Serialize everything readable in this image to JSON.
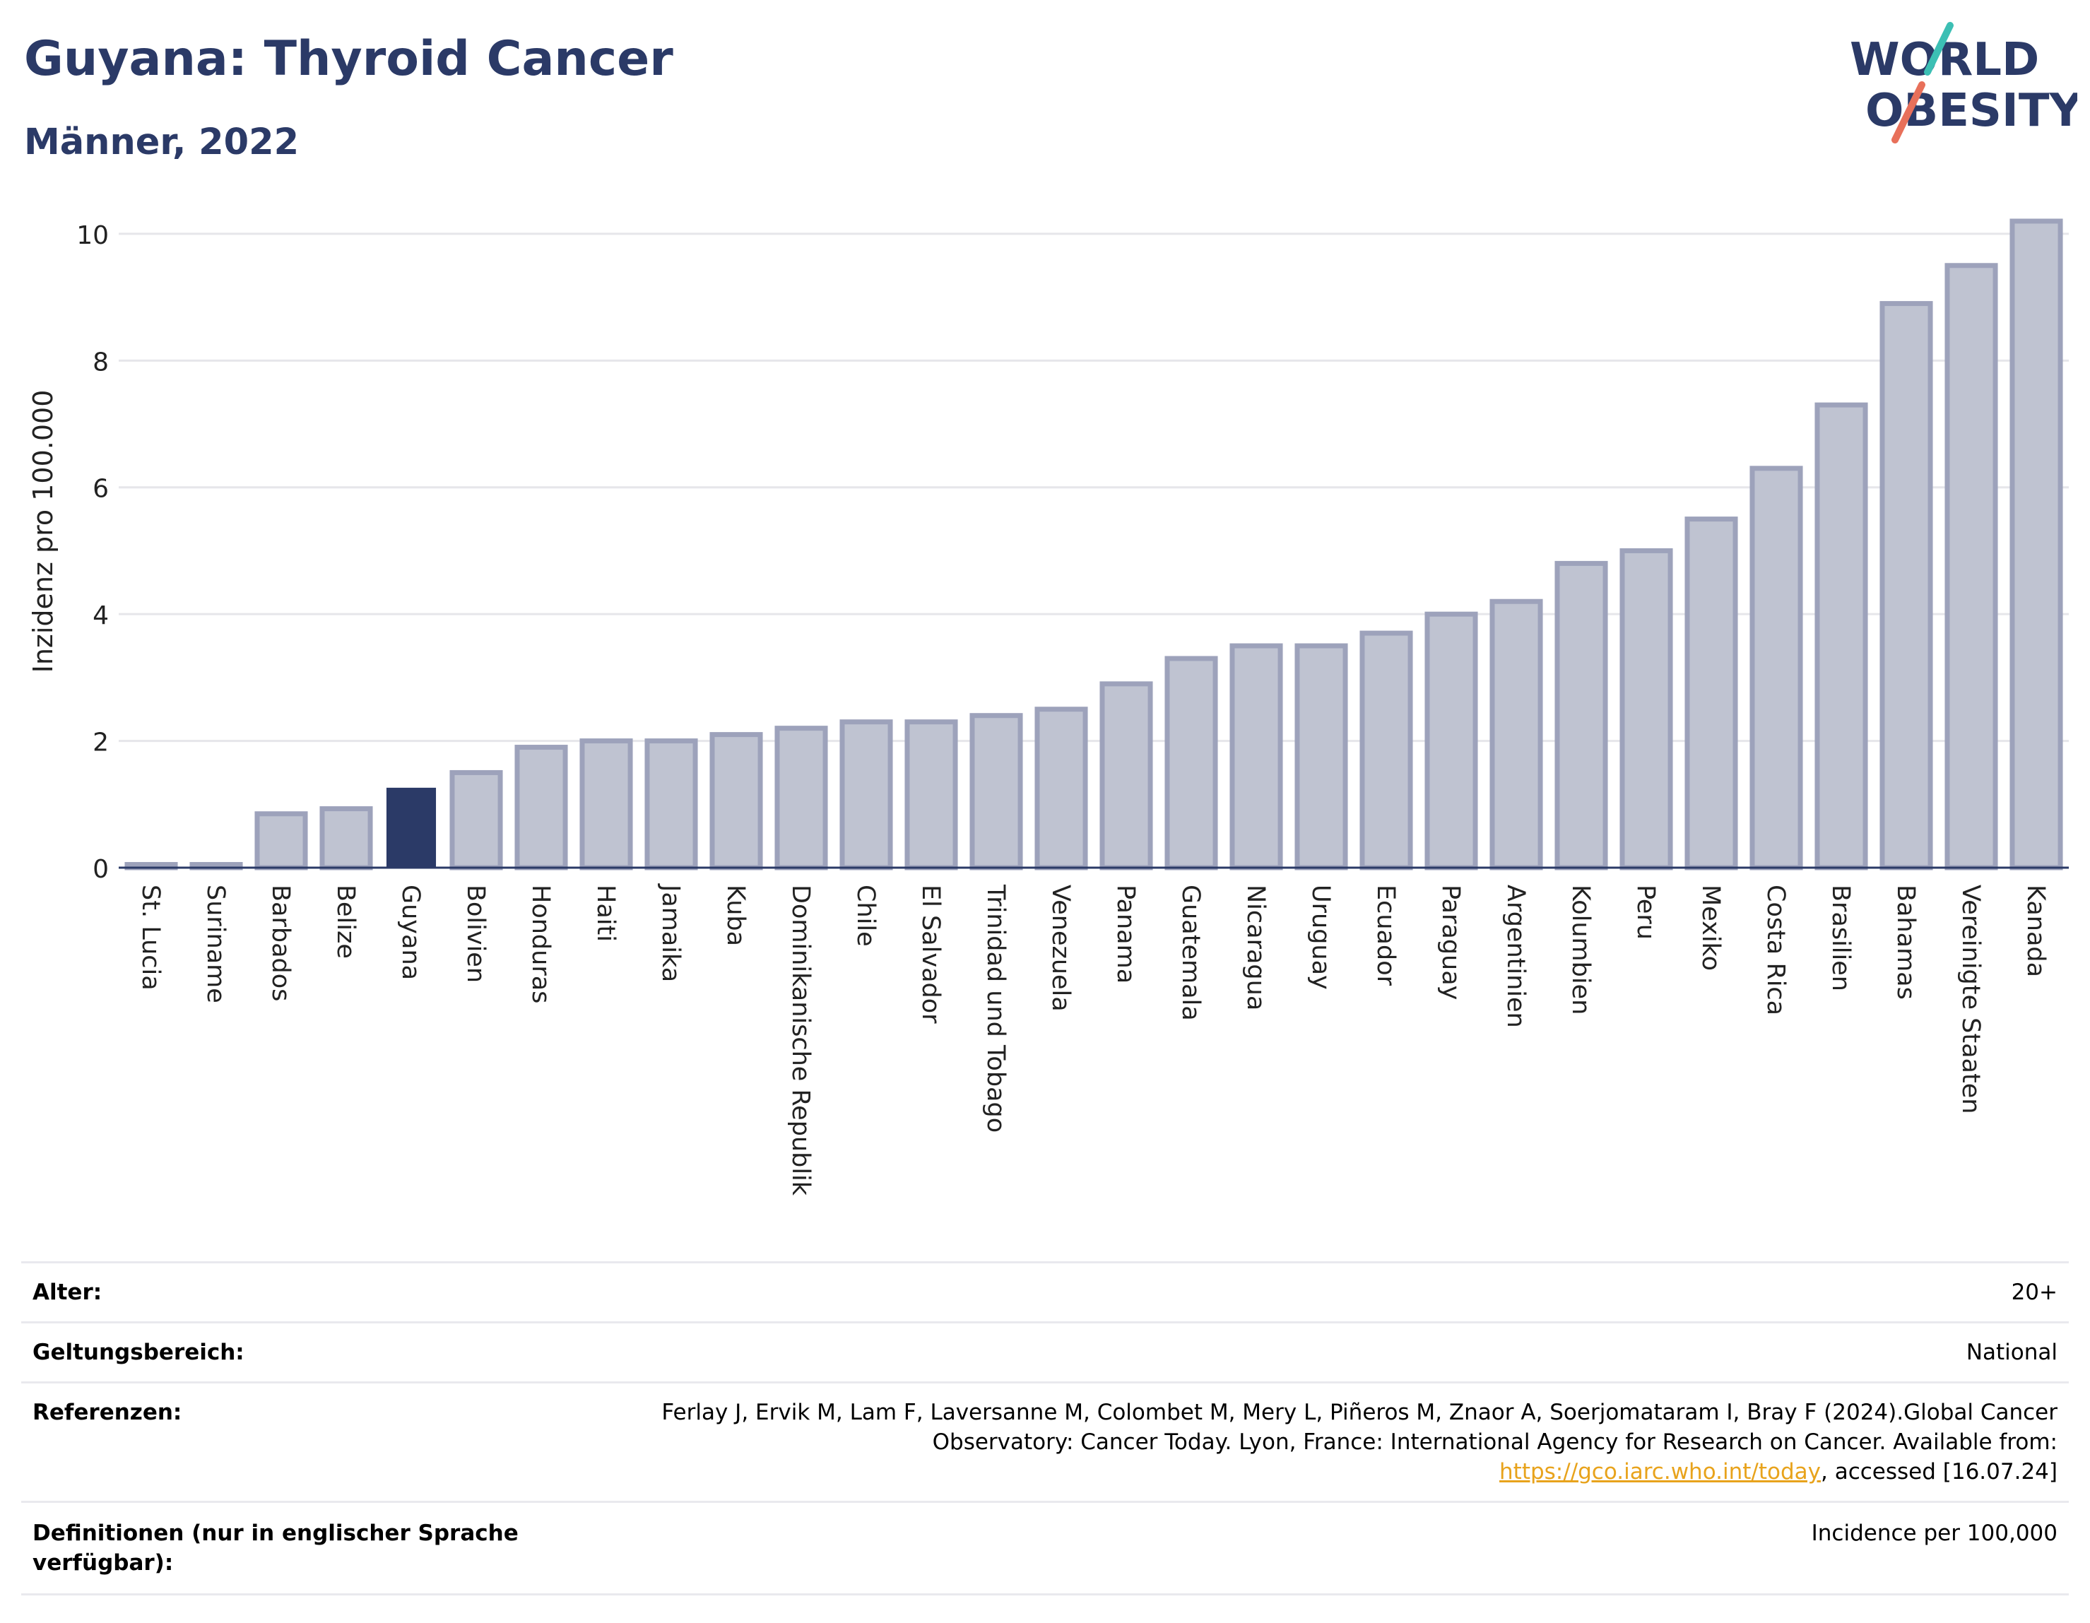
{
  "header": {
    "title": "Guyana: Thyroid Cancer",
    "subtitle": "Männer, 2022"
  },
  "logo": {
    "line1": "WORLD",
    "line2": "OBESITY",
    "colors": {
      "text": "#2b3a67",
      "slash_top": "#3cbfb4",
      "slash_bottom": "#e8705a"
    }
  },
  "colors": {
    "bar": "#bfc3d1",
    "bar_border": "#9da2bb",
    "highlight": "#2b3a67",
    "grid": "#e6e6ea",
    "axis": "#2b3a67"
  },
  "chart_data": {
    "type": "bar",
    "title": "Guyana: Thyroid Cancer",
    "subtitle": "Männer, 2022",
    "xlabel": "",
    "ylabel": "Inzidenz pro 100.000",
    "ylim": [
      0,
      10.3
    ],
    "yticks": [
      0,
      2,
      4,
      6,
      8,
      10
    ],
    "grid": true,
    "highlight": "Guyana",
    "categories": [
      "St. Lucia",
      "Suriname",
      "Barbados",
      "Belize",
      "Guyana",
      "Bolivien",
      "Honduras",
      "Haiti",
      "Jamaika",
      "Kuba",
      "Dominikanische Republik",
      "Chile",
      "El Salvador",
      "Trinidad und Tobago",
      "Venezuela",
      "Panama",
      "Guatemala",
      "Nicaragua",
      "Uruguay",
      "Ecuador",
      "Paraguay",
      "Argentinien",
      "Kolumbien",
      "Peru",
      "Mexiko",
      "Costa Rica",
      "Brasilien",
      "Bahamas",
      "Vereinigte Staaten",
      "Kanada"
    ],
    "values": [
      0.05,
      0.05,
      0.85,
      0.93,
      1.25,
      1.5,
      1.9,
      2.0,
      2.0,
      2.1,
      2.2,
      2.3,
      2.3,
      2.4,
      2.5,
      2.9,
      3.3,
      3.5,
      3.5,
      3.7,
      4.0,
      4.2,
      4.8,
      5.0,
      5.5,
      6.3,
      7.3,
      8.9,
      9.5,
      10.2
    ]
  },
  "info": {
    "age_label": "Alter:",
    "age_value": "20+",
    "scope_label": "Geltungsbereich:",
    "scope_value": "National",
    "ref_label": "Referenzen:",
    "ref_text_1": "Ferlay J, Ervik M, Lam F, Laversanne M, Colombet M, Mery L, Piñeros M, Znaor A, Soerjomataram I, Bray F (2024).Global Cancer Observatory: Cancer Today. Lyon, France: International Agency for Research on Cancer. Available from: ",
    "ref_link": "https://gco.iarc.who.int/today",
    "ref_text_2": ", accessed [16.07.24]",
    "def_label": "Definitionen (nur in englischer Sprache verfügbar):",
    "def_value": "Incidence per 100,000"
  }
}
